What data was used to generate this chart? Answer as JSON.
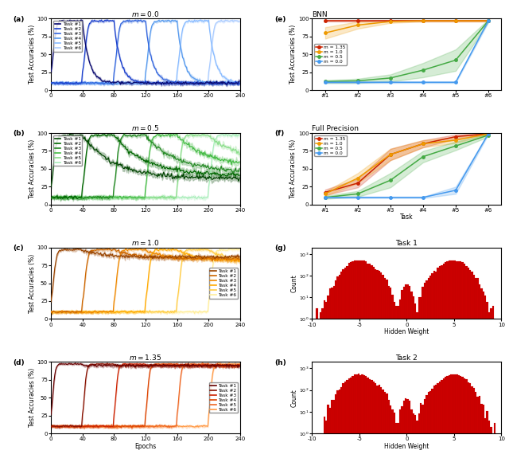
{
  "panel_labels": [
    "(a)",
    "(b)",
    "(c)",
    "(d)",
    "(e)",
    "(f)",
    "(g)",
    "(h)"
  ],
  "title_a": "m = 0.0",
  "title_b": "m = 0.5",
  "title_c": "m = 1.0",
  "title_d": "m = 1.35",
  "title_e": "BNN",
  "title_f": "Full Precision",
  "title_g": "Task 1",
  "title_h": "Task 2",
  "xlabel_left": "Epochs",
  "xlabel_right_ef": "Task",
  "xlabel_right_gh": "Hidden Weight",
  "ylabel_left": "Test Accuracies (%)",
  "ylabel_right_ef": "Test Accuracies (%)",
  "ylabel_right_gh": "Count",
  "task_colors_blue": [
    "#08086e",
    "#1a3fcc",
    "#3366dd",
    "#5599ee",
    "#88bbff",
    "#aaccff"
  ],
  "task_colors_green": [
    "#004400",
    "#006600",
    "#228822",
    "#44bb44",
    "#88dd88",
    "#aaeebb"
  ],
  "task_colors_orange": [
    "#994400",
    "#cc6600",
    "#ee8800",
    "#ffaa00",
    "#ffcc44",
    "#ffee99"
  ],
  "task_colors_red": [
    "#660000",
    "#881100",
    "#cc2200",
    "#dd4400",
    "#ee6622",
    "#ff9944"
  ],
  "m_colors_ef": [
    "#cc2200",
    "#ee9900",
    "#44aa44",
    "#4499ee"
  ],
  "m_labels_ef": [
    "m = 1.35",
    "m = 1.0",
    "m = 0.5",
    "m = 0.0"
  ],
  "bnn_m135_mean": [
    97,
    97,
    97,
    97,
    97,
    97
  ],
  "bnn_m135_std": [
    1,
    1,
    1,
    1,
    1,
    1
  ],
  "bnn_m10_mean": [
    80,
    91,
    96,
    97,
    97,
    97
  ],
  "bnn_m10_std": [
    8,
    5,
    2,
    1,
    1,
    1
  ],
  "bnn_m05_mean": [
    12,
    13,
    17,
    28,
    42,
    97
  ],
  "bnn_m05_std": [
    2,
    3,
    5,
    10,
    15,
    2
  ],
  "bnn_m00_mean": [
    11,
    11,
    11,
    11,
    11,
    97
  ],
  "bnn_m00_std": [
    1,
    1,
    1,
    1,
    1,
    2
  ],
  "fp_m135_mean": [
    17,
    30,
    70,
    85,
    95,
    99
  ],
  "fp_m135_std": [
    4,
    6,
    8,
    5,
    3,
    1
  ],
  "fp_m10_mean": [
    15,
    37,
    70,
    85,
    90,
    99
  ],
  "fp_m10_std": [
    3,
    7,
    8,
    5,
    4,
    1
  ],
  "fp_m05_mean": [
    10,
    15,
    34,
    67,
    82,
    97
  ],
  "fp_m05_std": [
    2,
    4,
    10,
    8,
    6,
    2
  ],
  "fp_m00_mean": [
    10,
    10,
    10,
    10,
    20,
    99
  ],
  "fp_m00_std": [
    1,
    1,
    1,
    1,
    5,
    1
  ],
  "n_tasks": 6,
  "epochs_per_task": 40,
  "total_epochs": 240
}
